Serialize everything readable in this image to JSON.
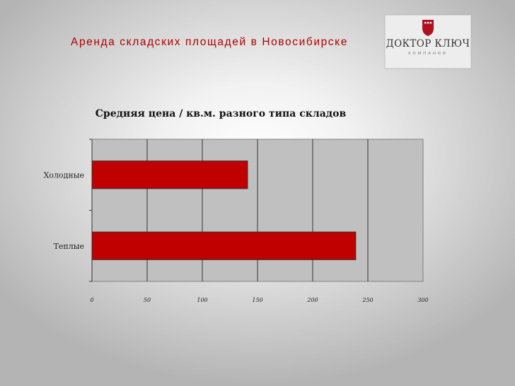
{
  "slide": {
    "title": "Аренда складских площадей в Новосибирске"
  },
  "logo": {
    "name": "ДОКТОР КЛЮЧ",
    "subtitle": "КОМПАНИЯ",
    "accent_color": "#b01020"
  },
  "chart_data": {
    "type": "bar",
    "orientation": "horizontal",
    "title": "Средняя цена / кв.м. разного типа складов",
    "xlabel": "",
    "ylabel": "",
    "categories": [
      "Холодные",
      "Теплые"
    ],
    "values": [
      141,
      239
    ],
    "xlim": [
      0,
      300
    ],
    "x_ticks": [
      "0",
      "50",
      "100",
      "150",
      "200",
      "250",
      "300"
    ],
    "grid": true,
    "legend": "none",
    "bar_color": "#c00000",
    "plot_background": "#c0c0c0"
  }
}
